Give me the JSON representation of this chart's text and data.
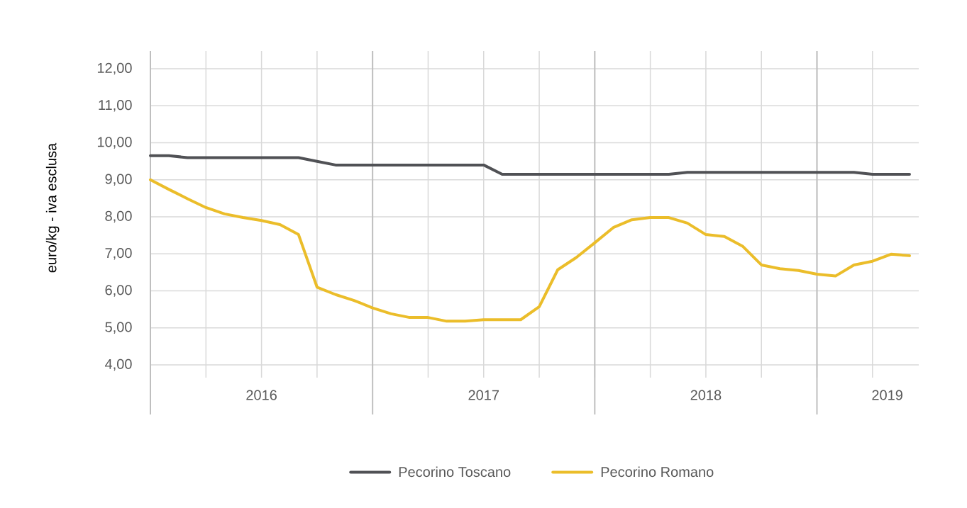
{
  "chart_data": {
    "type": "line",
    "ylabel": "euro/kg - iva esclusa",
    "x": [
      "2016-01",
      "2016-02",
      "2016-03",
      "2016-04",
      "2016-05",
      "2016-06",
      "2016-07",
      "2016-08",
      "2016-09",
      "2016-10",
      "2016-11",
      "2016-12",
      "2017-01",
      "2017-02",
      "2017-03",
      "2017-04",
      "2017-05",
      "2017-06",
      "2017-07",
      "2017-08",
      "2017-09",
      "2017-10",
      "2017-11",
      "2017-12",
      "2018-01",
      "2018-02",
      "2018-03",
      "2018-04",
      "2018-05",
      "2018-06",
      "2018-07",
      "2018-08",
      "2018-09",
      "2018-10",
      "2018-11",
      "2018-12",
      "2019-01",
      "2019-02",
      "2019-03",
      "2019-04",
      "2019-05",
      "2019-06"
    ],
    "series": [
      {
        "name": "Pecorino Toscano",
        "color": "#505155",
        "values": [
          9.65,
          9.65,
          9.6,
          9.6,
          9.6,
          9.6,
          9.6,
          9.6,
          9.6,
          9.5,
          9.4,
          9.4,
          9.4,
          9.4,
          9.4,
          9.4,
          9.4,
          9.4,
          9.4,
          9.15,
          9.15,
          9.15,
          9.15,
          9.15,
          9.15,
          9.15,
          9.15,
          9.15,
          9.15,
          9.2,
          9.2,
          9.2,
          9.2,
          9.2,
          9.2,
          9.2,
          9.2,
          9.2,
          9.2,
          9.15,
          9.15,
          9.15
        ]
      },
      {
        "name": "Pecorino Romano",
        "color": "#ebbd2a",
        "values": [
          9.0,
          8.74,
          8.49,
          8.25,
          8.08,
          7.98,
          7.9,
          7.79,
          7.52,
          6.1,
          5.9,
          5.74,
          5.54,
          5.38,
          5.28,
          5.28,
          5.18,
          5.18,
          5.22,
          5.22,
          5.22,
          5.57,
          6.57,
          6.9,
          7.3,
          7.71,
          7.92,
          7.98,
          7.98,
          7.83,
          7.52,
          7.47,
          7.2,
          6.7,
          6.6,
          6.55,
          6.45,
          6.4,
          6.7,
          6.8,
          6.99,
          6.95
        ]
      }
    ],
    "xlim": [
      "2016-01",
      "2019-06-16"
    ],
    "xticks": [
      {
        "value": "2016-01",
        "label": null
      },
      {
        "value": "2016-04",
        "label": null
      },
      {
        "value": "2016-07",
        "label": null
      },
      {
        "value": "2016-10",
        "label": null
      },
      {
        "value": "2017-01",
        "label": null
      },
      {
        "value": "2017-04",
        "label": null
      },
      {
        "value": "2017-07",
        "label": null
      },
      {
        "value": "2017-10",
        "label": null
      },
      {
        "value": "2018-01",
        "label": null
      },
      {
        "value": "2018-04",
        "label": null
      },
      {
        "value": "2018-07",
        "label": null
      },
      {
        "value": "2018-10",
        "label": null
      },
      {
        "value": "2019-01",
        "label": null
      },
      {
        "value": "2019-04",
        "label": null
      },
      {
        "value": "2016-07",
        "label": "2016"
      },
      {
        "value": "2017-07",
        "label": "2017"
      },
      {
        "value": "2018-07",
        "label": "2018"
      },
      {
        "value": "2019-04-25",
        "label": "2019"
      }
    ],
    "ylim": [
      4,
      12.48
    ],
    "yticks": [
      {
        "value": 4,
        "label": "4,00"
      },
      {
        "value": 5,
        "label": "5,00"
      },
      {
        "value": 6,
        "label": "6,00"
      },
      {
        "value": 7,
        "label": "7,00"
      },
      {
        "value": 8,
        "label": "8,00"
      },
      {
        "value": 9,
        "label": "9,00"
      },
      {
        "value": 10,
        "label": "10,00"
      },
      {
        "value": 11,
        "label": "11,00"
      },
      {
        "value": 12,
        "label": "12,00"
      }
    ],
    "grid": true,
    "legend": "bottom",
    "line_style": "solid",
    "marker": "none"
  }
}
